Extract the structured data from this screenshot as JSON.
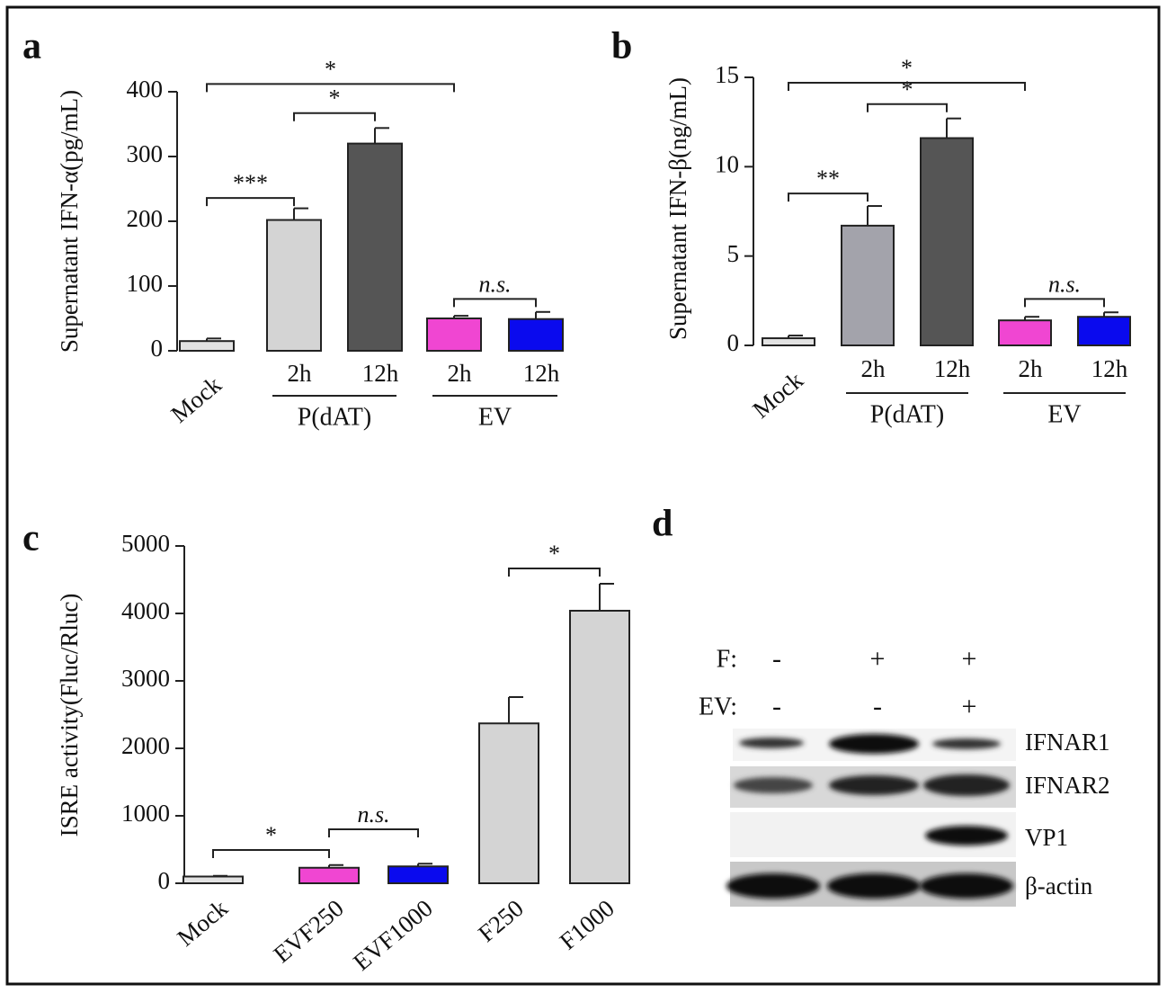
{
  "chart_data": [
    {
      "type": "bar",
      "panel": "a",
      "y_label": "Supernatant IFN-α(pg/mL)",
      "categories": [
        "Mock",
        "2h",
        "12h",
        "2h",
        "12h"
      ],
      "values": [
        15,
        202,
        320,
        50,
        49
      ],
      "errors": [
        4,
        18,
        24,
        4,
        11
      ],
      "colors": [
        "#e2e2e2",
        "#d4d4d4",
        "#555555",
        "#f046d2",
        "#0a0aee"
      ],
      "ylim": [
        0,
        400
      ],
      "yticks": [
        0,
        100,
        200,
        300,
        400
      ],
      "groups": [
        {
          "label": "P(dAT)",
          "categories": [
            1,
            2
          ]
        },
        {
          "label": "EV",
          "categories": [
            3,
            4
          ]
        }
      ],
      "brackets": [
        {
          "label": "***",
          "y": 236,
          "categories": [
            0,
            1
          ]
        },
        {
          "label": "*",
          "y": 367,
          "categories": [
            1,
            2
          ]
        },
        {
          "label": "*",
          "y": 412,
          "categories": [
            0,
            3
          ]
        },
        {
          "label": "n.s.",
          "y": 80,
          "categories": [
            3,
            4
          ]
        }
      ]
    },
    {
      "type": "bar",
      "panel": "b",
      "y_label": "Supernatant IFN-β(ng/mL)",
      "categories": [
        "Mock",
        "2h",
        "12h",
        "2h",
        "12h"
      ],
      "values": [
        0.4,
        6.7,
        11.6,
        1.4,
        1.6
      ],
      "errors": [
        0.15,
        1.1,
        1.1,
        0.2,
        0.25
      ],
      "colors": [
        "#e2e2e2",
        "#a3a3ab",
        "#555555",
        "#f046d2",
        "#0a0aee"
      ],
      "ylim": [
        0,
        15
      ],
      "yticks": [
        0,
        5,
        10,
        15
      ],
      "groups": [
        {
          "label": "P(dAT)",
          "categories": [
            1,
            2
          ]
        },
        {
          "label": "EV",
          "categories": [
            3,
            4
          ]
        }
      ],
      "brackets": [
        {
          "label": "**",
          "y": 8.5,
          "categories": [
            0,
            1
          ]
        },
        {
          "label": "*",
          "y": 13.5,
          "categories": [
            1,
            2
          ]
        },
        {
          "label": "*",
          "y": 14.7,
          "categories": [
            0,
            3
          ]
        },
        {
          "label": "n.s.",
          "y": 2.6,
          "categories": [
            3,
            4
          ]
        }
      ]
    },
    {
      "type": "bar",
      "panel": "c",
      "y_label": "ISRE activity(Fluc/Rluc)",
      "categories": [
        "Mock",
        "EVF250",
        "EVF1000",
        "F250",
        "F1000"
      ],
      "values": [
        100,
        230,
        250,
        2370,
        4040
      ],
      "errors": [
        10,
        40,
        40,
        390,
        400
      ],
      "colors": [
        "#e2e2e2",
        "#f046d2",
        "#0a0aee",
        "#d4d4d4",
        "#d4d4d4"
      ],
      "ylim": [
        0,
        5000
      ],
      "yticks": [
        0,
        1000,
        2000,
        3000,
        4000,
        5000
      ],
      "groups": [],
      "brackets": [
        {
          "label": "*",
          "y": 493,
          "categories": [
            0,
            1
          ]
        },
        {
          "label": "n.s.",
          "y": 800,
          "categories": [
            1,
            2
          ]
        },
        {
          "label": "*",
          "y": 4667,
          "categories": [
            3,
            4
          ]
        }
      ]
    }
  ],
  "blot": {
    "panel": "d",
    "conditions": [
      {
        "name": "F:",
        "lanes": [
          "-",
          "+",
          "+"
        ]
      },
      {
        "name": "EV:",
        "lanes": [
          "-",
          "-",
          "+"
        ]
      }
    ],
    "bands": [
      "IFNAR1",
      "IFNAR2",
      "VP1",
      "β-actin"
    ]
  }
}
